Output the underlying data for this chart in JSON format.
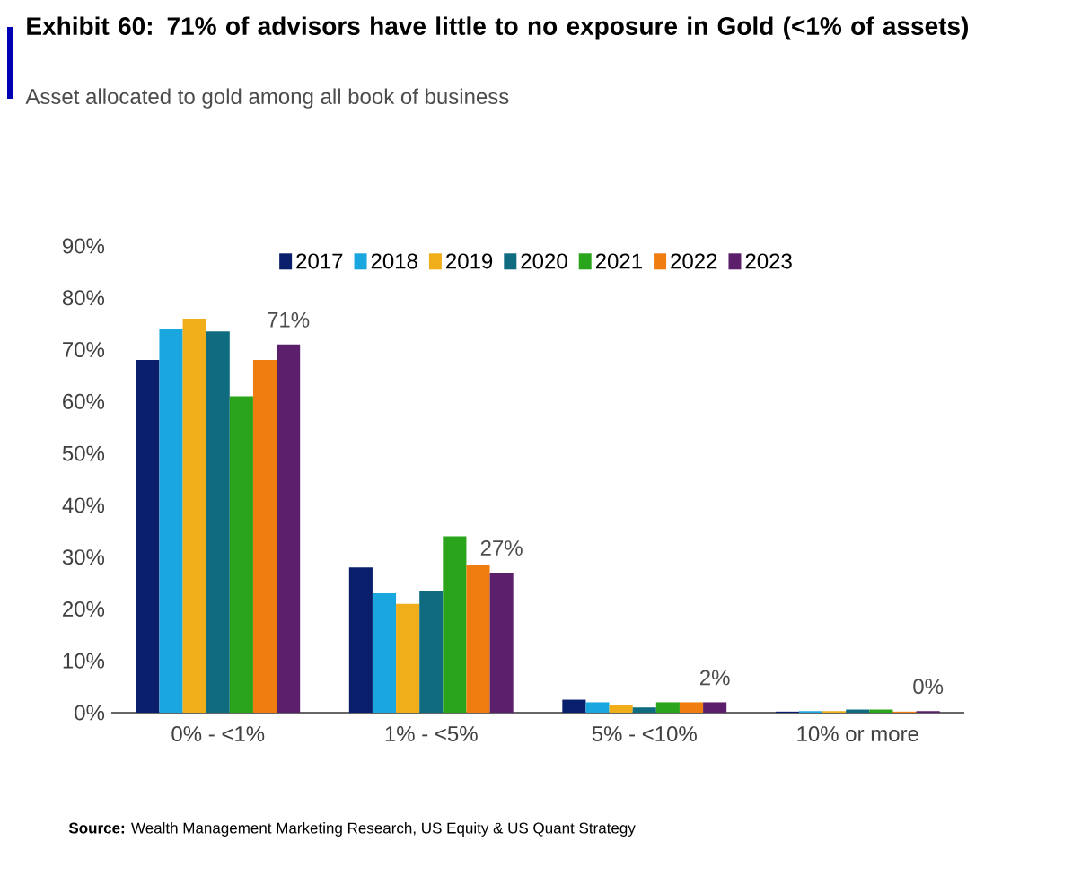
{
  "chart_data": {
    "type": "bar",
    "title": "Exhibit 60: 71% of advisors have little to no exposure in Gold (<1% of assets)",
    "subtitle": "Asset allocated to gold among all book of business",
    "annotations": [
      "**Source:** Wealth Management Marketing Research, US Equity & US Quant Strategy"
    ],
    "categories": [
      "0% - <1%",
      "1% - <5%",
      "5% - <10%",
      "10% or more"
    ],
    "series": [
      {
        "name": "2017",
        "color": "#0a1f6b",
        "values": [
          68,
          28,
          2.5,
          0.2
        ]
      },
      {
        "name": "2018",
        "color": "#1aa7e0",
        "values": [
          74,
          23,
          2,
          0.3
        ]
      },
      {
        "name": "2019",
        "color": "#f0ae1a",
        "values": [
          76,
          21,
          1.5,
          0.3
        ]
      },
      {
        "name": "2020",
        "color": "#0f6b80",
        "values": [
          73.5,
          23.5,
          1,
          0.6
        ]
      },
      {
        "name": "2021",
        "color": "#2aa41a",
        "values": [
          61,
          34,
          2,
          0.6
        ]
      },
      {
        "name": "2022",
        "color": "#f07d10",
        "values": [
          68,
          28.5,
          2,
          0.2
        ]
      },
      {
        "name": "2023",
        "color": "#5b1f6b",
        "values": [
          71,
          27,
          2,
          0.3
        ],
        "value_labels": [
          "71%",
          "27%",
          "2%",
          "0%"
        ]
      }
    ],
    "ylim": [
      0,
      90
    ],
    "yticks": [
      {
        "value": 0,
        "label": "0%"
      },
      {
        "value": 10,
        "label": "10%"
      },
      {
        "value": 20,
        "label": "20%"
      },
      {
        "value": 30,
        "label": "30%"
      },
      {
        "value": 40,
        "label": "40%"
      },
      {
        "value": 50,
        "label": "50%"
      },
      {
        "value": 60,
        "label": "60%"
      },
      {
        "value": 70,
        "label": "70%"
      },
      {
        "value": 80,
        "label": "80%"
      },
      {
        "value": 90,
        "label": "90%"
      }
    ],
    "legend": "top",
    "grid": false
  }
}
